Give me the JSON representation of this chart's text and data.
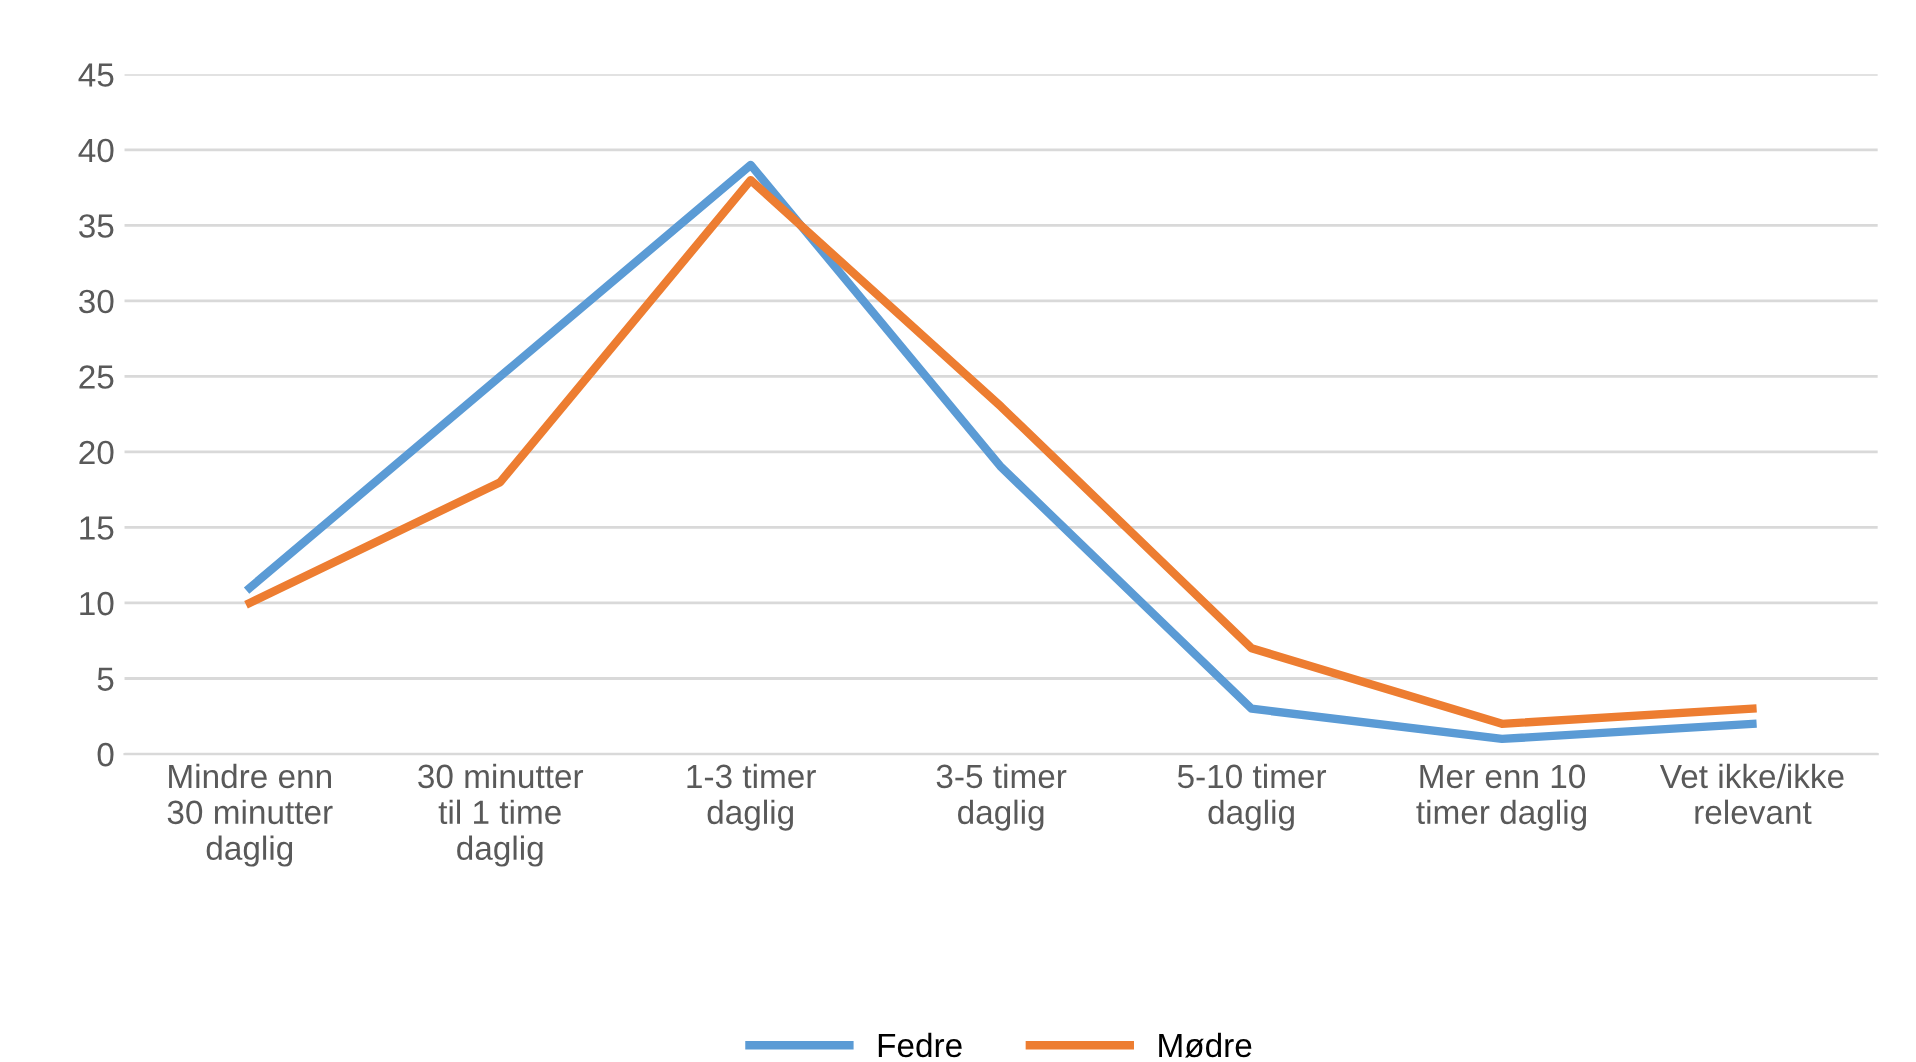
{
  "chart_data": {
    "type": "line",
    "categories": [
      "Mindre enn\n30 minutter\ndaglig",
      "30 minutter\ntil 1 time\ndaglig",
      "1-3 timer\ndaglig",
      "3-5 timer\ndaglig",
      "5-10 timer\ndaglig",
      "Mer enn 10\ntimer daglig",
      "Vet ikke/ikke\nrelevant"
    ],
    "series": [
      {
        "name": "Fedre",
        "color": "#5b9bd5",
        "values": [
          11,
          25,
          39,
          19,
          3,
          1,
          2
        ]
      },
      {
        "name": "Mødre",
        "color": "#ed7d31",
        "values": [
          10,
          18,
          38,
          23,
          7,
          2,
          3
        ]
      }
    ],
    "ylim": [
      0,
      45
    ],
    "yticks": [
      0,
      5,
      10,
      15,
      20,
      25,
      30,
      35,
      40,
      45
    ],
    "grid": "y",
    "legend": "bottom",
    "marker": "none",
    "line_style": "solid"
  }
}
